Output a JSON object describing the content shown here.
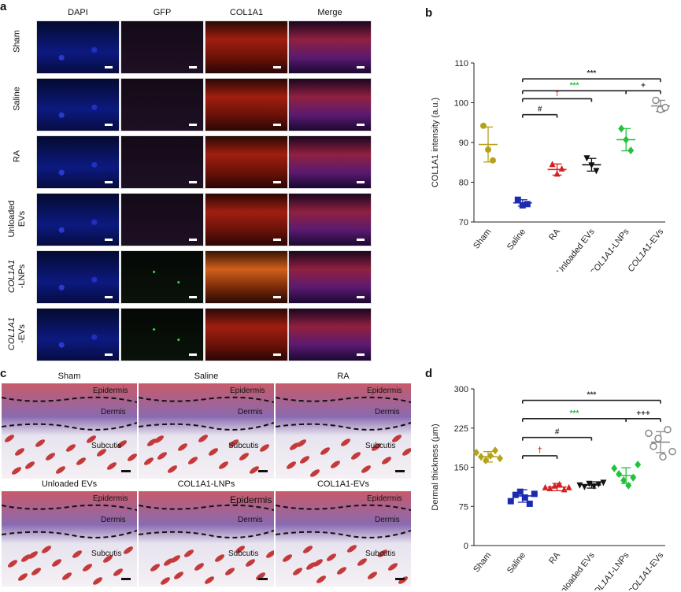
{
  "panel_labels": {
    "a": "a",
    "b": "b",
    "c": "c",
    "d": "d"
  },
  "panel_a": {
    "columns": [
      "DAPI",
      "GFP",
      "COL1A1",
      "Merge"
    ],
    "rows": [
      {
        "l1": "Sham",
        "l2": ""
      },
      {
        "l1": "Saline",
        "l2": ""
      },
      {
        "l1": "RA",
        "l2": ""
      },
      {
        "l1": "Unloaded",
        "l2": "EVs"
      },
      {
        "l1": "COL1A1",
        "l2": "-LNPs"
      },
      {
        "l1": "COL1A1",
        "l2": "-EVs"
      }
    ],
    "colors": {
      "DAPI": "#0b1a8a",
      "GFP": "#1a0f1e",
      "COL1A1": "#8a1a0c",
      "Merge": "#6a1a50"
    }
  },
  "panel_c": {
    "images": [
      {
        "title": "Sham"
      },
      {
        "title": "Saline"
      },
      {
        "title": "RA"
      },
      {
        "title": "Unloaded EVs"
      },
      {
        "title": "COL1A1-LNPs"
      },
      {
        "title": "COL1A1-EVs"
      }
    ],
    "layer_labels": {
      "epi": "Epidermis",
      "der": "Dermis",
      "sub": "Subcutis"
    }
  },
  "chart_data": [
    {
      "type": "scatter",
      "panel": "b",
      "ylabel": "COL1A1 intensity (a.u.)",
      "ylim": [
        70,
        110
      ],
      "yticks": [
        70,
        80,
        90,
        100,
        110
      ],
      "categories": [
        "Sham",
        "Saline",
        "RA",
        "Unloaded EVs",
        "COL1A1-LNPs",
        "COL1A1-EVs"
      ],
      "colors": [
        "#b5a21a",
        "#1a2bb0",
        "#d42020",
        "#111111",
        "#22c23a",
        "#8a8a8a"
      ],
      "means": [
        89.5,
        74.8,
        83.2,
        84.4,
        90.7,
        99.2
      ],
      "sd": [
        4.4,
        0.8,
        1.4,
        1.6,
        2.8,
        1.4
      ],
      "points": [
        [
          94.2,
          88.2,
          85.5
        ],
        [
          75.6,
          74.2,
          74.5
        ],
        [
          84.6,
          82.2,
          83.5
        ],
        [
          86.0,
          84.2,
          82.8
        ],
        [
          93.5,
          90.7,
          88.0
        ],
        [
          100.6,
          98.3,
          98.8
        ]
      ],
      "markers": [
        "circle",
        "square",
        "triangle",
        "triangle-down",
        "diamond",
        "circle-open"
      ],
      "annotations": [
        {
          "text": "***",
          "color": "#333333",
          "from": 1,
          "to": 5,
          "y": 106
        },
        {
          "text": "***",
          "color": "#22c23a",
          "from": 1,
          "to": 4,
          "y": 103
        },
        {
          "text": "+",
          "color": "#333333",
          "from": 4,
          "to": 5,
          "y": 103
        },
        {
          "text": "†",
          "color": "#d42020",
          "from": 1,
          "to": 3,
          "y": 101
        },
        {
          "text": "#",
          "color": "#333333",
          "from": 1,
          "to": 2,
          "y": 97
        }
      ]
    },
    {
      "type": "scatter",
      "panel": "d",
      "ylabel": "Dermal thickness (µm)",
      "ylim": [
        0,
        300
      ],
      "yticks": [
        0,
        75,
        150,
        225,
        300
      ],
      "categories": [
        "Sham",
        "Saline",
        "RA",
        "Unloaded EVs",
        "COL1A1-LNPs",
        "COL1A1-EVs"
      ],
      "colors": [
        "#b5a21a",
        "#1a2bb0",
        "#d42020",
        "#111111",
        "#22c23a",
        "#8a8a8a"
      ],
      "means": [
        170,
        95,
        112,
        116,
        134,
        198
      ],
      "sd": [
        10,
        12,
        7,
        6,
        15,
        20
      ],
      "points": [
        [
          178,
          170,
          163,
          172,
          182,
          167
        ],
        [
          85,
          97,
          103,
          92,
          80,
          99
        ],
        [
          112,
          110,
          115,
          118,
          108,
          112
        ],
        [
          115,
          112,
          118,
          113,
          117,
          120
        ],
        [
          148,
          137,
          125,
          115,
          130,
          155
        ],
        [
          215,
          190,
          205,
          170,
          222,
          180
        ]
      ],
      "markers": [
        "diamond",
        "square",
        "triangle",
        "triangle-down",
        "diamond",
        "circle-open"
      ],
      "annotations": [
        {
          "text": "***",
          "color": "#333333",
          "from": 1,
          "to": 5,
          "y": 278
        },
        {
          "text": "***",
          "color": "#22c23a",
          "from": 1,
          "to": 4,
          "y": 243
        },
        {
          "text": "+++",
          "color": "#333333",
          "from": 4,
          "to": 5,
          "y": 243
        },
        {
          "text": "#",
          "color": "#333333",
          "from": 1,
          "to": 3,
          "y": 207
        },
        {
          "text": "†",
          "color": "#d42020",
          "from": 1,
          "to": 2,
          "y": 172
        }
      ]
    }
  ]
}
